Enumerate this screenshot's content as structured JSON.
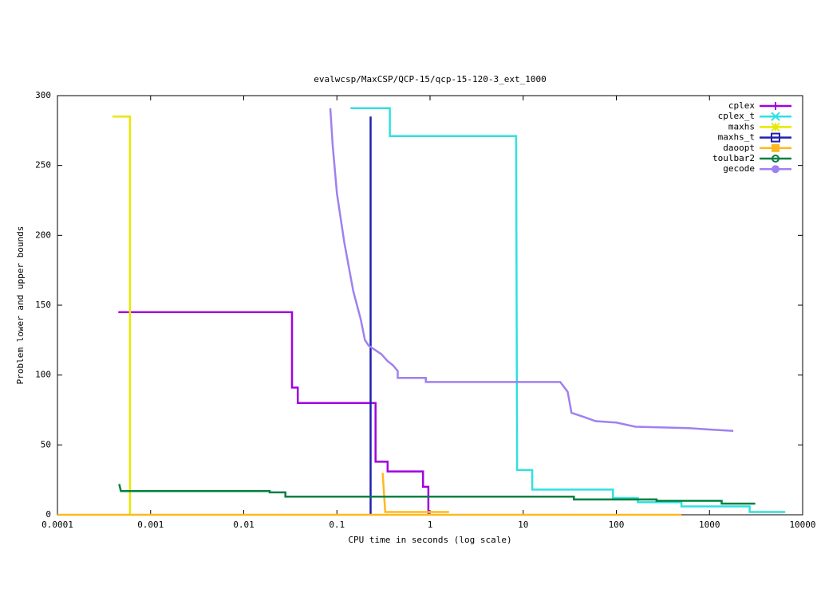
{
  "chart_data": {
    "type": "line",
    "title": "evalwcsp/MaxCSP/QCP-15/qcp-15-120-3_ext_1000",
    "x_label": "CPU time in seconds (log scale)",
    "y_label": "Problem lower and upper bounds",
    "x_log": true,
    "xlim": [
      0.0001,
      10000
    ],
    "xticks": [
      0.0001,
      0.001,
      0.01,
      0.1,
      1,
      10,
      100,
      1000,
      10000
    ],
    "ylim": [
      0,
      300
    ],
    "yticks": [
      0,
      50,
      100,
      150,
      200,
      250,
      300
    ],
    "legend": "top-right",
    "series": [
      {
        "name": "cplex",
        "color": "#a000e0",
        "marker": "plus",
        "x": [
          0.00045,
          0.033,
          0.033,
          0.038,
          0.038,
          0.26,
          0.26,
          0.35,
          0.35,
          0.84,
          0.84,
          0.96,
          0.96
        ],
        "values": [
          145,
          145,
          91,
          91,
          80,
          80,
          38,
          38,
          31,
          31,
          20,
          20,
          0
        ]
      },
      {
        "name": "cplex_t",
        "color": "#30e0e0",
        "marker": "cross",
        "x": [
          0.14,
          0.37,
          0.37,
          8.4,
          8.6,
          8.6,
          12.5,
          12.5,
          92,
          92,
          170,
          170,
          500,
          500,
          2700,
          2700,
          6500
        ],
        "values": [
          291,
          291,
          271,
          271,
          38,
          32,
          32,
          18,
          18,
          12,
          12,
          9,
          9,
          6,
          6,
          2,
          2
        ]
      },
      {
        "name": "maxhs",
        "color": "#e8e800",
        "marker": "star",
        "x": [
          0.00039,
          0.0006,
          0.0006
        ],
        "values": [
          285,
          285,
          0
        ]
      },
      {
        "name": "maxhs_t",
        "color": "#2020b0",
        "marker": "square-open",
        "x": [
          0.23,
          0.23
        ],
        "values": [
          285,
          0
        ]
      },
      {
        "name": "daoopt",
        "color": "#ffb820",
        "marker": "square",
        "x": [
          0.31,
          0.33,
          1.6,
          null,
          0.0001,
          500
        ],
        "values": [
          30,
          2,
          2,
          null,
          0,
          0
        ]
      },
      {
        "name": "toulbar2",
        "color": "#008040",
        "marker": "circle-open",
        "x": [
          0.00046,
          0.00048,
          0.019,
          0.019,
          0.028,
          0.028,
          35,
          35,
          270,
          270,
          1350,
          1350,
          3100
        ],
        "values": [
          22,
          17,
          17,
          16,
          16,
          13,
          13,
          11,
          11,
          10,
          10,
          8,
          8
        ]
      },
      {
        "name": "gecode",
        "color": "#a080f0",
        "marker": "circle",
        "x": [
          0.085,
          0.09,
          0.1,
          0.12,
          0.15,
          0.18,
          0.2,
          0.22,
          0.3,
          0.35,
          0.4,
          0.45,
          0.45,
          0.9,
          0.9,
          25,
          30,
          33,
          45,
          60,
          100,
          160,
          600,
          1000,
          1800
        ],
        "values": [
          291,
          265,
          230,
          195,
          160,
          140,
          125,
          121,
          115,
          110,
          107,
          103,
          98,
          98,
          95,
          95,
          88,
          73,
          70,
          67,
          66,
          63,
          62,
          61,
          60
        ]
      }
    ]
  }
}
